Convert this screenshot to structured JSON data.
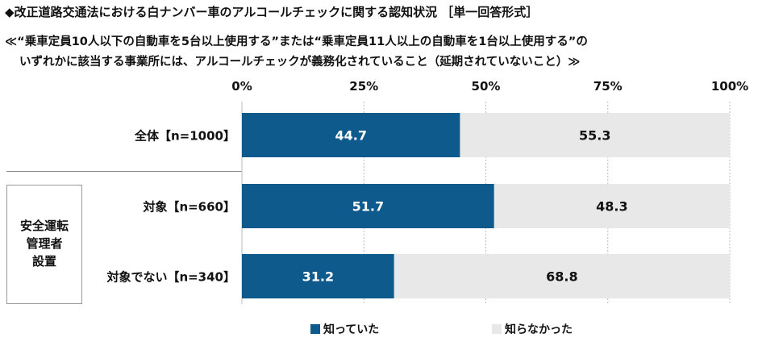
{
  "title": "◆改正道路交通法における白ナンバー車のアルコールチェックに関する認知状況 ［単一回答形式］",
  "subtitle_lines": [
    "≪“乗車定員10人以下の自動車を5台以上使用する”または“乗車定員11人以上の自動車を1台以上使用する”の",
    "いずれかに該当する事業所には、アルコールチェックが義務化されていること（延期されていないこと）≫"
  ],
  "group_label": [
    "安全運転",
    "管理者",
    "設置"
  ],
  "colors": {
    "knew": "#0f5a8c",
    "didnt": "#e8e8e8",
    "grid": "#bbbbbb"
  },
  "chart_data": {
    "type": "bar",
    "orientation": "horizontal",
    "stacked": true,
    "percent": true,
    "xlim": [
      0,
      100
    ],
    "ticks": [
      "0%",
      "25%",
      "50%",
      "75%",
      "100%"
    ],
    "categories": [
      "全体【n=1000】",
      "対象【n=660】",
      "対象でない【n=340】"
    ],
    "series": [
      {
        "name": "知っていた",
        "values": [
          44.7,
          51.7,
          31.2
        ]
      },
      {
        "name": "知らなかった",
        "values": [
          55.3,
          48.3,
          68.8
        ]
      }
    ],
    "legend": "bottom"
  }
}
